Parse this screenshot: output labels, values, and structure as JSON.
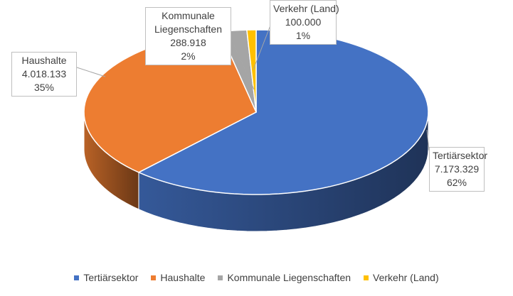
{
  "chart_data": {
    "type": "pie",
    "style": "3d",
    "title": "",
    "categories": [
      "Tertiärsektor",
      "Haushalte",
      "Kommunale Liegenschaften",
      "Verkehr (Land)"
    ],
    "values": [
      7173329,
      4018133,
      288918,
      100000
    ],
    "value_labels": [
      "7.173.329",
      "4.018.133",
      "288.918",
      "100.000"
    ],
    "percent_labels": [
      "62%",
      "35%",
      "2%",
      "1%"
    ],
    "colors": [
      "#4472C4",
      "#ED7D31",
      "#A5A5A5",
      "#FFC000"
    ],
    "label_lines": [
      [
        "Tertiärsektor"
      ],
      [
        "Haushalte"
      ],
      [
        "Kommunale",
        "Liegenschaften"
      ],
      [
        "Verkehr (Land)"
      ]
    ],
    "legend_position": "bottom"
  }
}
